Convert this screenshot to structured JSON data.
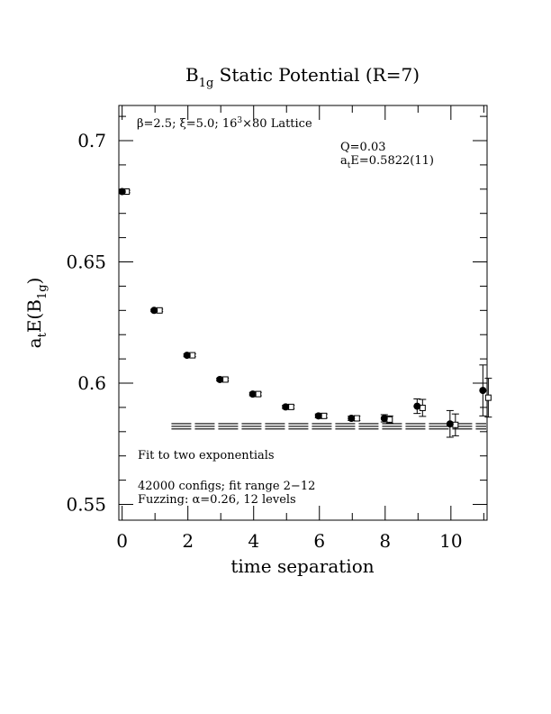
{
  "chart_data": {
    "type": "scatter",
    "title": "B1g Static Potential (R=7)",
    "title_parts": {
      "main": "B",
      "sub": "1g",
      "rest": " Static Potential (R=7)"
    },
    "xlabel": "time separation",
    "ylabel_parts": {
      "a": "a",
      "t": "t",
      "E": "E(B",
      "sub": "1g",
      "close": ")"
    },
    "xlim": [
      -0.1,
      11.1
    ],
    "ylim": [
      0.5435,
      0.7145
    ],
    "x_ticks": [
      0,
      2,
      4,
      6,
      8,
      10
    ],
    "x_tick_labels": [
      "0",
      "2",
      "4",
      "6",
      "8",
      "10"
    ],
    "y_ticks": [
      0.55,
      0.6,
      0.65,
      0.7
    ],
    "y_tick_labels": [
      "0.55",
      "0.6",
      "0.65",
      "0.7"
    ],
    "annotations": {
      "lattice_prefix": "β=2.5; ξ=5.0; 16",
      "lattice_sup": "3",
      "lattice_suffix": "×80 Lattice",
      "q_value": "Q=0.03",
      "energy_a": "a",
      "energy_t": "t",
      "energy_rest": "E=0.5822(11)",
      "fit_desc": "Fit to two exponentials",
      "configs": "42000 configs; fit range 2−12",
      "fuzzing": "Fuzzing: α=0.26, 12 levels"
    },
    "series": [
      {
        "marker": "filled-circle",
        "x": [
          0,
          1,
          2,
          3,
          4,
          5,
          6,
          7,
          8,
          9,
          10,
          11
        ],
        "y": [
          0.679,
          0.63,
          0.6115,
          0.6015,
          0.5955,
          0.5902,
          0.5865,
          0.5855,
          0.5855,
          0.5905,
          0.5832,
          0.597
        ],
        "err": [
          0.0005,
          0.0005,
          0.0006,
          0.0006,
          0.0007,
          0.0007,
          0.0008,
          0.0009,
          0.0015,
          0.003,
          0.0055,
          0.0105
        ]
      },
      {
        "marker": "open-square",
        "x": [
          0,
          1,
          2,
          3,
          4,
          5,
          6,
          7,
          8,
          9,
          10,
          11
        ],
        "y": [
          0.679,
          0.63,
          0.6115,
          0.6015,
          0.5955,
          0.5902,
          0.5865,
          0.5855,
          0.585,
          0.5898,
          0.5828,
          0.594
        ],
        "err": [
          0.0005,
          0.0005,
          0.0006,
          0.0006,
          0.0007,
          0.0007,
          0.0008,
          0.0009,
          0.0015,
          0.0035,
          0.0045,
          0.008
        ]
      }
    ],
    "fit": {
      "center": 0.5822,
      "error": 0.0011,
      "x_range": [
        1.5,
        11.1
      ]
    }
  }
}
